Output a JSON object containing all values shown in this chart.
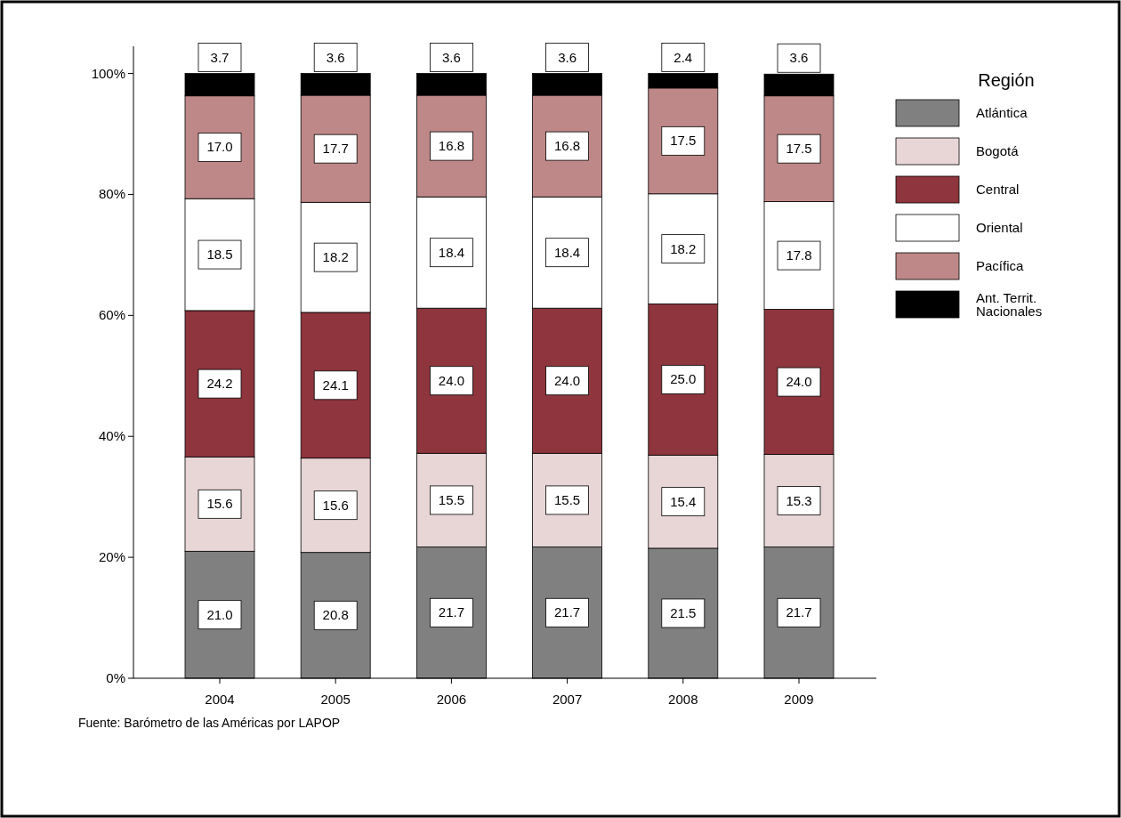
{
  "chart_data": {
    "type": "bar",
    "stacked": true,
    "categories": [
      "2004",
      "2005",
      "2006",
      "2007",
      "2008",
      "2009"
    ],
    "series": [
      {
        "name": "Atlántica",
        "color": "#808080",
        "values": [
          21.0,
          20.8,
          21.7,
          21.7,
          21.5,
          21.7
        ],
        "value_labels": [
          "21.0",
          "20.8",
          "21.7",
          "21.7",
          "21.5",
          "21.7"
        ]
      },
      {
        "name": "Bogotá",
        "color": "#e8d6d6",
        "values": [
          15.6,
          15.6,
          15.5,
          15.5,
          15.4,
          15.3
        ],
        "value_labels": [
          "15.6",
          "15.6",
          "15.5",
          "15.5",
          "15.4",
          "15.3"
        ]
      },
      {
        "name": "Central",
        "color": "#8e353d",
        "values": [
          24.2,
          24.1,
          24.0,
          24.0,
          25.0,
          24.0
        ],
        "value_labels": [
          "24.2",
          "24.1",
          "24.0",
          "24.0",
          "25.0",
          "24.0"
        ]
      },
      {
        "name": "Oriental",
        "color": "#ffffff",
        "values": [
          18.5,
          18.2,
          18.4,
          18.4,
          18.2,
          17.8
        ],
        "value_labels": [
          "18.5",
          "18.2",
          "18.4",
          "18.4",
          "18.2",
          "17.8"
        ]
      },
      {
        "name": "Pacífica",
        "color": "#bf8888",
        "values": [
          17.0,
          17.7,
          16.8,
          16.8,
          17.5,
          17.5
        ],
        "value_labels": [
          "17.0",
          "17.7",
          "16.8",
          "16.8",
          "17.5",
          "17.5"
        ]
      },
      {
        "name": "Ant. Territ. Nacionales",
        "color": "#000000",
        "values": [
          3.7,
          3.6,
          3.6,
          3.6,
          2.4,
          3.6
        ],
        "value_labels": [
          "3.7",
          "3.6",
          "3.6",
          "3.6",
          "2.4",
          "3.6"
        ]
      }
    ],
    "ylim": [
      0,
      104.5
    ],
    "yticks": [
      {
        "value": 0,
        "label": "0%"
      },
      {
        "value": 20,
        "label": "20%"
      },
      {
        "value": 40,
        "label": "40%"
      },
      {
        "value": 60,
        "label": "60%"
      },
      {
        "value": 80,
        "label": "80%"
      },
      {
        "value": 100,
        "label": "100%"
      }
    ],
    "grid": false,
    "legend": "top right",
    "legend_title": "Región",
    "annotations": [
      "Fuente: Barómetro de las Américas por LAPOP"
    ]
  }
}
